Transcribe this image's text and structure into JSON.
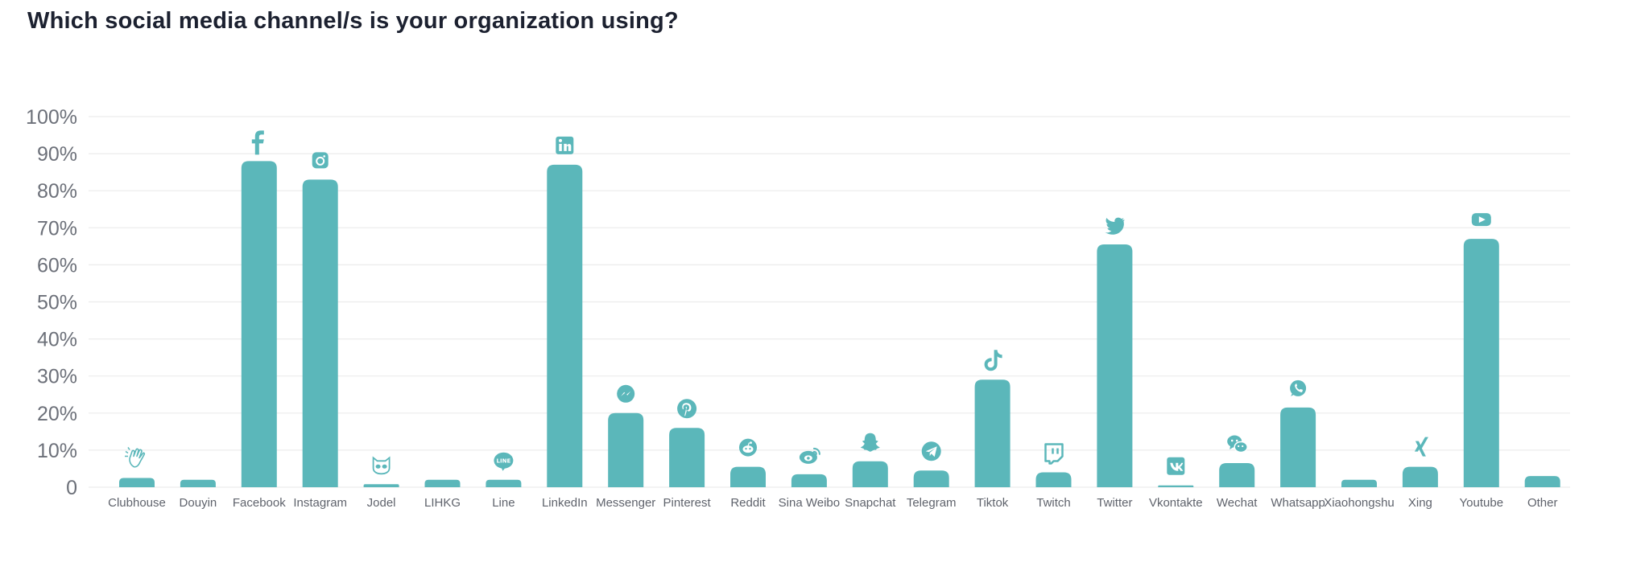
{
  "header": {
    "title": "Which social media channel/s is your organization using?"
  },
  "colors": {
    "bar": "#5bb7ba",
    "grid": "#ececec",
    "tick_text": "#6c7079"
  },
  "chart_data": {
    "type": "bar",
    "title": "Which social media channel/s is your organization using?",
    "xlabel": "",
    "ylabel": "",
    "ylim": [
      0,
      100
    ],
    "grid": true,
    "legend": "none",
    "y_ticks": [
      "0",
      "10%",
      "20%",
      "30%",
      "40%",
      "50%",
      "60%",
      "70%",
      "80%",
      "90%",
      "100%"
    ],
    "categories": [
      "Clubhouse",
      "Douyin",
      "Facebook",
      "Instagram",
      "Jodel",
      "LIHKG",
      "Line",
      "LinkedIn",
      "Messenger",
      "Pinterest",
      "Reddit",
      "Sina Weibo",
      "Snapchat",
      "Telegram",
      "Tiktok",
      "Twitch",
      "Twitter",
      "Vkontakte",
      "Wechat",
      "Whatsapp",
      "Xiaohongshu",
      "Xing",
      "Youtube",
      "Other"
    ],
    "values": [
      2.5,
      2,
      88,
      83,
      0.8,
      2,
      2,
      87,
      20,
      16,
      5.5,
      3.5,
      7,
      4.5,
      29,
      4,
      65.5,
      0.5,
      6.5,
      21.5,
      2,
      5.5,
      67,
      3
    ],
    "icons": [
      "clubhouse-icon",
      "",
      "facebook-icon",
      "instagram-icon",
      "jodel-icon",
      "",
      "line-icon",
      "linkedin-icon",
      "messenger-icon",
      "pinterest-icon",
      "reddit-icon",
      "sina-weibo-icon",
      "snapchat-icon",
      "telegram-icon",
      "tiktok-icon",
      "twitch-icon",
      "twitter-icon",
      "vkontakte-icon",
      "wechat-icon",
      "whatsapp-icon",
      "",
      "xing-icon",
      "youtube-icon",
      ""
    ]
  }
}
